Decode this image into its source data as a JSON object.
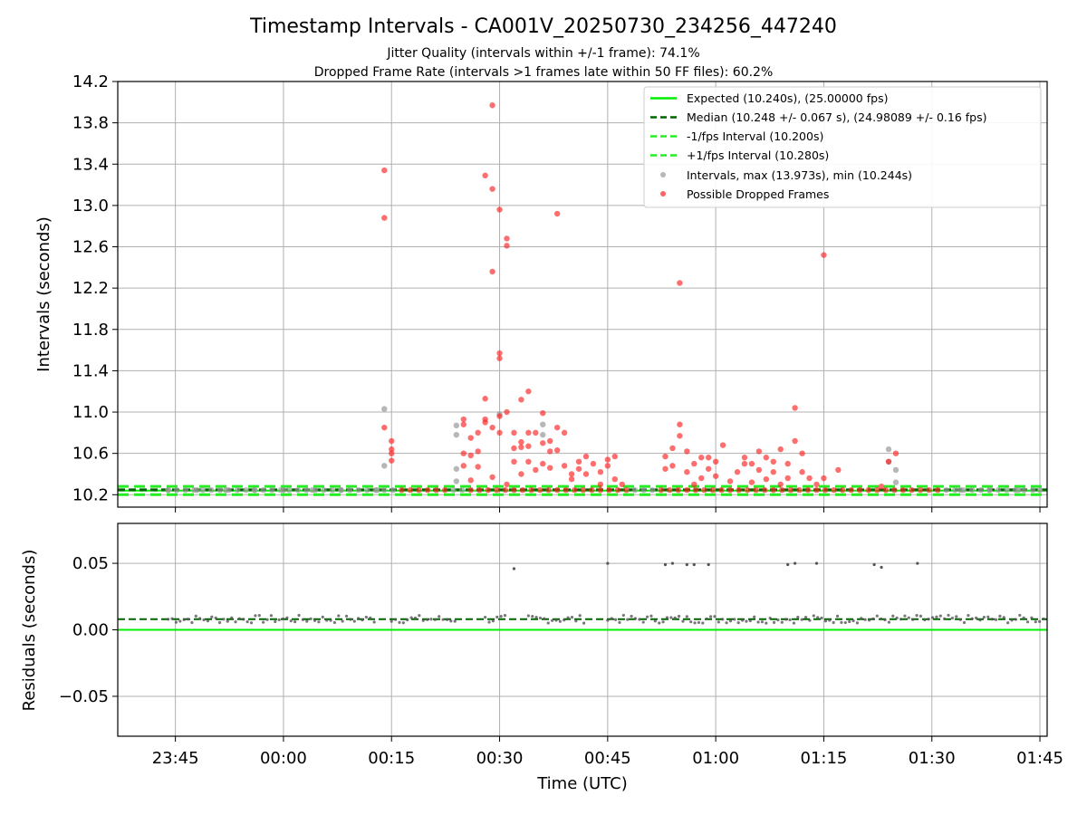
{
  "figure": {
    "title": "Timestamp Intervals - CA001V_20250730_234256_447240",
    "subtitle_1": "Jitter Quality (intervals within +/-1 frame): 74.1%",
    "subtitle_2": "Dropped Frame Rate (intervals >1 frames late within 50 FF files): 60.2%"
  },
  "colors": {
    "expected": "#00ee00",
    "median": "#006400",
    "band": "#22ee22",
    "intervals": "#999999",
    "dropped": "#ff2020",
    "residuals": "#555555",
    "grid": "#b0b0b0"
  },
  "chart_data": [
    {
      "type": "scatter",
      "ylabel": "Intervals (seconds)",
      "ylim": [
        10.08,
        14.2
      ],
      "yticks": [
        "10.2",
        "10.6",
        "11.0",
        "11.4",
        "11.8",
        "12.2",
        "12.6",
        "13.0",
        "13.4",
        "13.8",
        "14.2"
      ],
      "grid": true,
      "legend_position": "top-right",
      "reference_lines": [
        {
          "name": "Expected (10.240s), (25.00000 fps)",
          "y": 10.24,
          "style": "solid",
          "color": "#00ee00"
        },
        {
          "name": "Median (10.248 +/- 0.067 s), (24.98089 +/- 0.16 fps)",
          "y": 10.248,
          "style": "dashed",
          "color": "#006400"
        },
        {
          "name": "-1/fps Interval (10.200s)",
          "y": 10.2,
          "style": "dashed",
          "color": "#22ee22"
        },
        {
          "name": "+1/fps Interval (10.280s)",
          "y": 10.28,
          "style": "dashed",
          "color": "#22ee22"
        }
      ],
      "series": [
        {
          "name": "Intervals, max (13.973s), min (10.244s)",
          "color": "#999999",
          "points": [
            [
              "23:44",
              10.245
            ],
            [
              "23:48",
              10.245
            ],
            [
              "23:52",
              10.245
            ],
            [
              "23:56",
              10.245
            ],
            [
              "00:00",
              10.245
            ],
            [
              "00:04",
              10.245
            ],
            [
              "00:08",
              10.245
            ],
            [
              "00:13",
              10.245
            ],
            [
              "00:14",
              10.48
            ],
            [
              "00:14",
              11.03
            ],
            [
              "00:24",
              10.33
            ],
            [
              "00:24",
              10.45
            ],
            [
              "00:24",
              10.78
            ],
            [
              "00:24",
              10.87
            ],
            [
              "00:30",
              10.98
            ],
            [
              "00:36",
              10.78
            ],
            [
              "00:36",
              10.88
            ],
            [
              "01:24",
              10.64
            ],
            [
              "01:24",
              10.52
            ],
            [
              "01:25",
              10.44
            ],
            [
              "01:25",
              10.32
            ],
            [
              "01:34",
              10.245
            ],
            [
              "01:38",
              10.245
            ],
            [
              "01:42",
              10.245
            ],
            [
              "01:45",
              10.245
            ]
          ]
        },
        {
          "name": "Possible Dropped Frames",
          "color": "#ff2020",
          "points": [
            [
              "00:14",
              13.34
            ],
            [
              "00:14",
              12.88
            ],
            [
              "00:14",
              10.85
            ],
            [
              "00:15",
              10.72
            ],
            [
              "00:15",
              10.6
            ],
            [
              "00:15",
              10.53
            ],
            [
              "00:15",
              10.64
            ],
            [
              "00:25",
              10.88
            ],
            [
              "00:25",
              10.93
            ],
            [
              "00:25",
              10.48
            ],
            [
              "00:25",
              10.6
            ],
            [
              "00:26",
              10.58
            ],
            [
              "00:26",
              10.34
            ],
            [
              "00:26",
              10.75
            ],
            [
              "00:27",
              10.47
            ],
            [
              "00:27",
              10.62
            ],
            [
              "00:27",
              10.8
            ],
            [
              "00:28",
              10.93
            ],
            [
              "00:28",
              13.29
            ],
            [
              "00:28",
              11.13
            ],
            [
              "00:28",
              10.9
            ],
            [
              "00:29",
              13.97
            ],
            [
              "00:29",
              13.16
            ],
            [
              "00:29",
              12.36
            ],
            [
              "00:29",
              10.85
            ],
            [
              "00:29",
              10.37
            ],
            [
              "00:30",
              12.96
            ],
            [
              "00:30",
              11.57
            ],
            [
              "00:30",
              11.52
            ],
            [
              "00:30",
              10.96
            ],
            [
              "00:30",
              10.8
            ],
            [
              "00:31",
              12.68
            ],
            [
              "00:31",
              12.61
            ],
            [
              "00:31",
              11.0
            ],
            [
              "00:31",
              10.3
            ],
            [
              "00:32",
              10.52
            ],
            [
              "00:32",
              10.8
            ],
            [
              "00:32",
              10.65
            ],
            [
              "00:33",
              11.12
            ],
            [
              "00:33",
              10.71
            ],
            [
              "00:33",
              10.66
            ],
            [
              "00:33",
              10.4
            ],
            [
              "00:34",
              11.2
            ],
            [
              "00:34",
              10.8
            ],
            [
              "00:34",
              10.67
            ],
            [
              "00:34",
              10.52
            ],
            [
              "00:35",
              10.44
            ],
            [
              "00:35",
              10.8
            ],
            [
              "00:36",
              10.99
            ],
            [
              "00:36",
              10.7
            ],
            [
              "00:36",
              10.5
            ],
            [
              "00:37",
              10.62
            ],
            [
              "00:37",
              10.46
            ],
            [
              "00:37",
              10.72
            ],
            [
              "00:38",
              12.92
            ],
            [
              "00:38",
              10.85
            ],
            [
              "00:38",
              10.63
            ],
            [
              "00:39",
              10.8
            ],
            [
              "00:39",
              10.48
            ],
            [
              "00:40",
              10.4
            ],
            [
              "00:40",
              10.35
            ],
            [
              "00:41",
              10.52
            ],
            [
              "00:41",
              10.45
            ],
            [
              "00:42",
              10.57
            ],
            [
              "00:42",
              10.4
            ],
            [
              "00:43",
              10.5
            ],
            [
              "00:44",
              10.42
            ],
            [
              "00:44",
              10.3
            ],
            [
              "00:45",
              10.54
            ],
            [
              "00:45",
              10.48
            ],
            [
              "00:46",
              10.57
            ],
            [
              "00:46",
              10.35
            ],
            [
              "00:47",
              10.3
            ],
            [
              "00:53",
              10.45
            ],
            [
              "00:53",
              10.57
            ],
            [
              "00:54",
              10.65
            ],
            [
              "00:54",
              10.48
            ],
            [
              "00:55",
              10.77
            ],
            [
              "00:55",
              10.88
            ],
            [
              "00:55",
              12.25
            ],
            [
              "00:56",
              10.62
            ],
            [
              "00:56",
              10.42
            ],
            [
              "00:57",
              10.3
            ],
            [
              "00:57",
              10.5
            ],
            [
              "00:58",
              10.56
            ],
            [
              "00:58",
              10.36
            ],
            [
              "00:59",
              10.56
            ],
            [
              "00:59",
              10.45
            ],
            [
              "01:00",
              10.52
            ],
            [
              "01:00",
              10.38
            ],
            [
              "01:01",
              10.68
            ],
            [
              "01:02",
              10.33
            ],
            [
              "01:03",
              10.42
            ],
            [
              "01:04",
              10.56
            ],
            [
              "01:04",
              10.5
            ],
            [
              "01:05",
              10.5
            ],
            [
              "01:05",
              10.32
            ],
            [
              "01:06",
              10.62
            ],
            [
              "01:06",
              10.44
            ],
            [
              "01:07",
              10.56
            ],
            [
              "01:07",
              10.35
            ],
            [
              "01:08",
              10.52
            ],
            [
              "01:08",
              10.42
            ],
            [
              "01:09",
              10.64
            ],
            [
              "01:09",
              10.3
            ],
            [
              "01:10",
              10.36
            ],
            [
              "01:10",
              10.5
            ],
            [
              "01:11",
              11.04
            ],
            [
              "01:11",
              10.72
            ],
            [
              "01:12",
              10.6
            ],
            [
              "01:12",
              10.42
            ],
            [
              "01:13",
              10.36
            ],
            [
              "01:14",
              10.3
            ],
            [
              "01:15",
              12.52
            ],
            [
              "01:15",
              10.36
            ],
            [
              "01:17",
              10.44
            ],
            [
              "01:24",
              10.52
            ],
            [
              "01:25",
              10.6
            ],
            [
              "01:23",
              10.28
            ]
          ],
          "baseline_segments": [
            [
              "00:16",
              "00:23"
            ],
            [
              "00:25",
              "00:48"
            ],
            [
              "00:52",
              "01:31"
            ]
          ],
          "baseline_value": 10.245
        }
      ]
    },
    {
      "type": "scatter",
      "ylabel": "Residuals (seconds)",
      "xlabel": "Time (UTC)",
      "ylim": [
        -0.08,
        0.08
      ],
      "yticks": [
        "−0.05",
        "0.00",
        "0.05"
      ],
      "xticks": [
        "23:45",
        "00:00",
        "00:15",
        "00:30",
        "00:45",
        "01:00",
        "01:15",
        "01:30",
        "01:45"
      ],
      "xlim": [
        "23:37",
        "01:46"
      ],
      "grid": true,
      "reference_lines": [
        {
          "name": "zero",
          "y": 0.0,
          "style": "solid",
          "color": "#00ee00"
        },
        {
          "name": "median",
          "y": 0.008,
          "style": "dashed",
          "color": "#006400"
        }
      ],
      "series": [
        {
          "name": "Residuals",
          "color": "#555555",
          "baseline_value": 0.008,
          "baseline_segments": [
            [
              "23:44",
              "00:13"
            ],
            [
              "00:15",
              "00:24"
            ],
            [
              "00:28",
              "00:31"
            ],
            [
              "00:34",
              "00:42"
            ],
            [
              "00:45",
              "01:46"
            ]
          ],
          "outliers": [
            [
              "00:32",
              0.046
            ],
            [
              "00:45",
              0.05
            ],
            [
              "00:53",
              0.049
            ],
            [
              "00:54",
              0.05
            ],
            [
              "00:56",
              0.049
            ],
            [
              "00:57",
              0.049
            ],
            [
              "00:59",
              0.049
            ],
            [
              "01:10",
              0.049
            ],
            [
              "01:11",
              0.05
            ],
            [
              "01:14",
              0.05
            ],
            [
              "01:22",
              0.049
            ],
            [
              "01:23",
              0.047
            ],
            [
              "01:28",
              0.05
            ]
          ]
        }
      ]
    }
  ]
}
